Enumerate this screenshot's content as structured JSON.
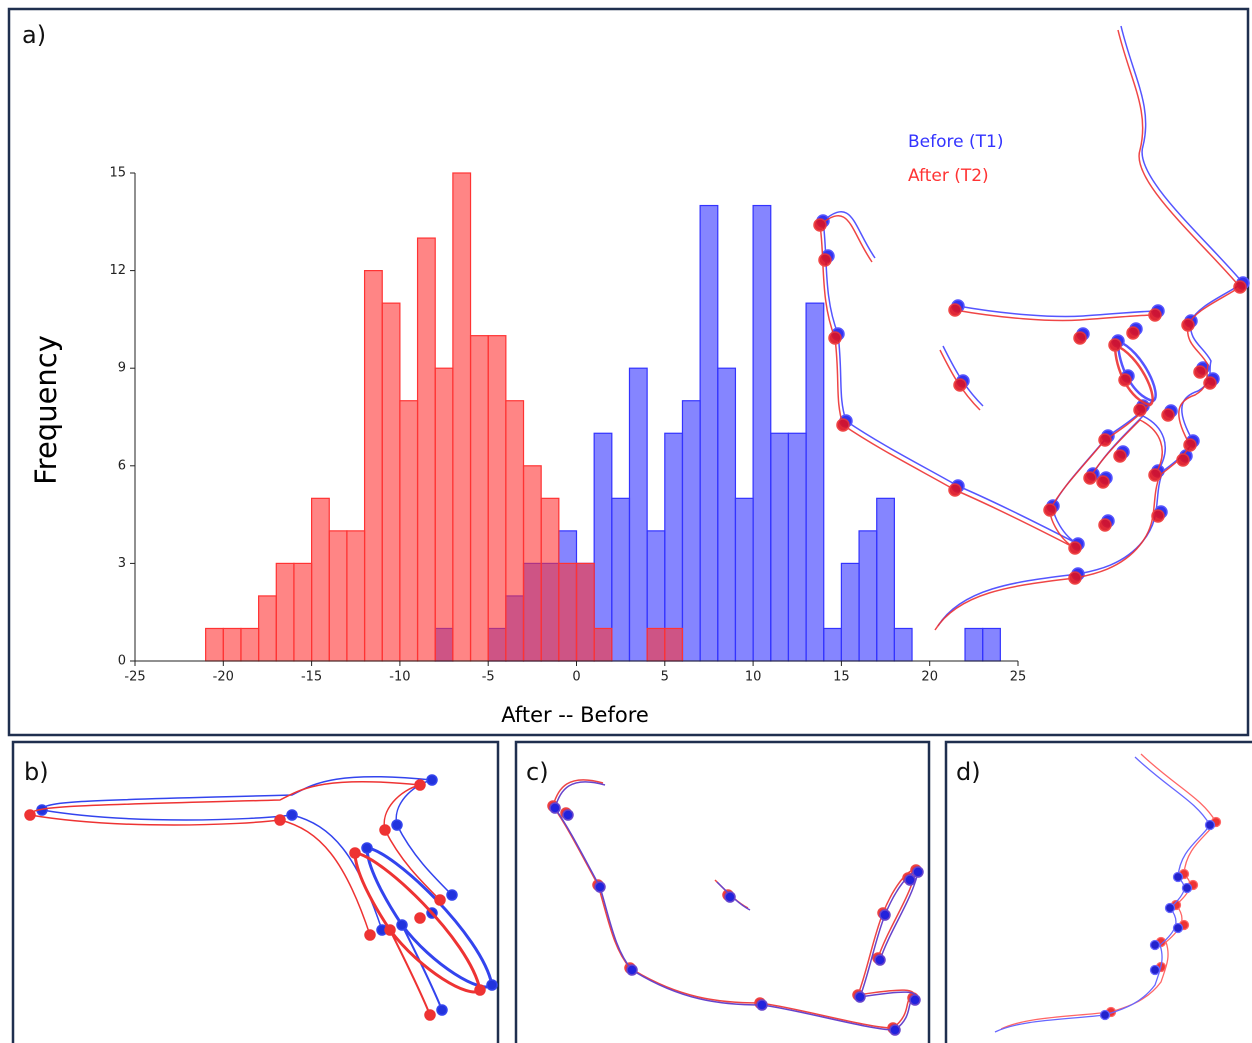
{
  "panel_labels": [
    "a)",
    "b)",
    "c)",
    "d)"
  ],
  "chart_data": {
    "type": "histogram",
    "xlabel": "After -- Before",
    "ylabel": "Frequency",
    "xlim": [
      -25,
      25
    ],
    "ylim": [
      0,
      15
    ],
    "xticks": [
      -25,
      -20,
      -15,
      -10,
      -5,
      0,
      5,
      10,
      15,
      20,
      25
    ],
    "yticks": [
      0,
      3,
      6,
      9,
      12,
      15
    ],
    "series": [
      {
        "name": "Before (T1)",
        "color": "#3333ff",
        "bins": [
          -8,
          -7,
          -6,
          -5,
          -4,
          -3,
          -2,
          -1,
          0,
          1,
          2,
          3,
          4,
          5,
          6,
          7,
          8,
          9,
          10,
          11,
          12,
          13,
          14,
          15,
          16,
          17,
          18,
          19,
          20,
          21,
          22,
          23,
          24
        ],
        "values": [
          1,
          0,
          0,
          1,
          2,
          3,
          3,
          4,
          3,
          7,
          5,
          9,
          4,
          7,
          8,
          14,
          9,
          5,
          14,
          7,
          7,
          11,
          1,
          3,
          4,
          5,
          1,
          0,
          0,
          0,
          1,
          1
        ]
      },
      {
        "name": "After (T2)",
        "color": "#ff3333",
        "bins": [
          -21,
          -20,
          -19,
          -18,
          -17,
          -16,
          -15,
          -14,
          -13,
          -12,
          -11,
          -10,
          -9,
          -8,
          -7,
          -6,
          -5,
          -4,
          -3,
          -2,
          -1,
          0,
          1,
          2,
          3,
          4,
          5,
          6
        ],
        "values": [
          1,
          1,
          1,
          2,
          3,
          3,
          5,
          4,
          4,
          12,
          11,
          8,
          13,
          9,
          15,
          10,
          10,
          8,
          6,
          5,
          3,
          3,
          1,
          0,
          0,
          1,
          1
        ]
      }
    ]
  }
}
